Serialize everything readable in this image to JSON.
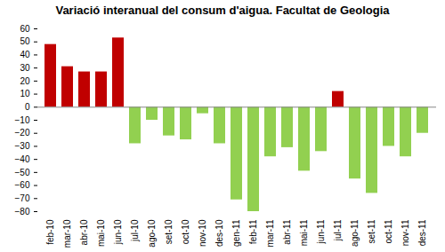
{
  "chart_data": {
    "type": "bar",
    "title": "Variació interanual del consum d'aigua. Facultat de Geologia",
    "y_label": "%",
    "categories": [
      "feb-10",
      "mar-10",
      "abr-10",
      "mai-10",
      "jun-10",
      "jul-10",
      "ago-10",
      "set-10",
      "oct-10",
      "nov-10",
      "des-10",
      "gen-11",
      "feb-11",
      "mar-11",
      "abr-11",
      "mai-11",
      "jun-11",
      "jul-11",
      "ago-11",
      "set-11",
      "oct-11",
      "nov-11",
      "des-11"
    ],
    "values": [
      48,
      31,
      27,
      27,
      53,
      -28,
      -10,
      -22,
      -25,
      -5,
      -28,
      -71,
      -80,
      -38,
      -31,
      -49,
      -34,
      12,
      -55,
      -66,
      -30,
      -38,
      -20
    ],
    "colors": [
      "#c00000",
      "#c00000",
      "#c00000",
      "#c00000",
      "#c00000",
      "#92d050",
      "#92d050",
      "#92d050",
      "#92d050",
      "#92d050",
      "#92d050",
      "#92d050",
      "#92d050",
      "#92d050",
      "#92d050",
      "#92d050",
      "#92d050",
      "#c00000",
      "#92d050",
      "#92d050",
      "#92d050",
      "#92d050",
      "#92d050"
    ],
    "ylim": [
      -80,
      60
    ],
    "yticks": [
      -80,
      -70,
      -60,
      -50,
      -40,
      -30,
      -20,
      -10,
      0,
      10,
      20,
      30,
      40,
      50,
      60
    ],
    "grid": false
  }
}
